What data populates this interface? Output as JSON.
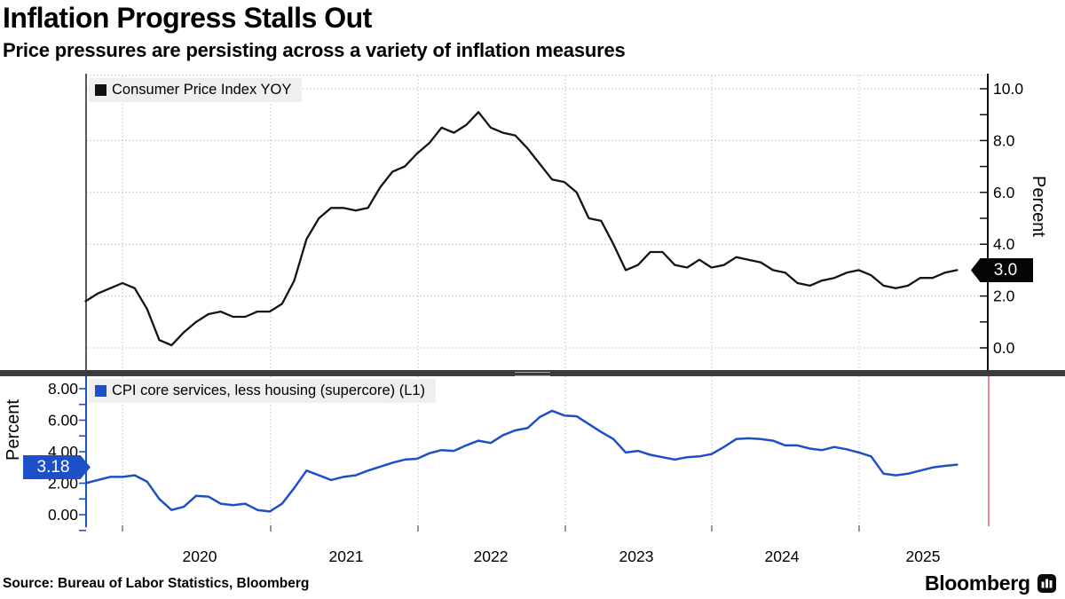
{
  "header": {
    "title": "Inflation Progress Stalls Out",
    "subtitle": "Price pressures are persisting across a variety of inflation measures"
  },
  "footer": {
    "source": "Source: Bureau of Labor Statistics, Bloomberg",
    "brand": "Bloomberg"
  },
  "colors": {
    "cpi_line": "#141414",
    "supercore_line": "#1d50c8",
    "top_badge_bg": "#050505",
    "bottom_badge_bg": "#1d50c8",
    "grid": "#bcbcbc",
    "divider": "#3c3c3c",
    "red_cursor": "#e0636c",
    "legend_bg": "#efefef"
  },
  "x_axis": {
    "years": [
      "2020",
      "2021",
      "2022",
      "2023",
      "2024",
      "2025"
    ]
  },
  "top_chart": {
    "legend": "Consumer Price Index YOY",
    "axis_label": "Percent",
    "tick_labels": [
      "0.0",
      "2.0",
      "4.0",
      "6.0",
      "8.0",
      "10.0"
    ],
    "last_value_label": "3.0"
  },
  "bottom_chart": {
    "legend": "CPI core services, less housing (supercore) (L1)",
    "axis_label": "Percent",
    "tick_labels": [
      "0.00",
      "2.00",
      "4.00",
      "6.00",
      "8.00"
    ],
    "last_value_label": "3.18"
  },
  "chart_data": [
    {
      "type": "line",
      "title": "Consumer Price Index YOY",
      "ylabel": "Percent",
      "frequency": "monthly",
      "start": "2019-10",
      "end": "2025-09",
      "x_tick_labels": [
        "2020",
        "2021",
        "2022",
        "2023",
        "2024",
        "2025"
      ],
      "yticks": [
        0,
        2,
        4,
        6,
        8,
        10
      ],
      "ylim": [
        -0.9,
        10.8
      ],
      "grid": "both-dotted",
      "legend_position": "top-left",
      "axis_side": "right",
      "last_value": 3.0,
      "values": [
        1.8,
        2.1,
        2.3,
        2.5,
        2.3,
        1.5,
        0.3,
        0.1,
        0.6,
        1.0,
        1.3,
        1.4,
        1.2,
        1.2,
        1.4,
        1.4,
        1.7,
        2.6,
        4.2,
        5.0,
        5.4,
        5.4,
        5.3,
        5.4,
        6.2,
        6.8,
        7.0,
        7.5,
        7.9,
        8.5,
        8.3,
        8.6,
        9.1,
        8.5,
        8.3,
        8.2,
        7.7,
        7.1,
        6.5,
        6.4,
        6.0,
        5.0,
        4.9,
        4.0,
        3.0,
        3.2,
        3.7,
        3.7,
        3.2,
        3.1,
        3.4,
        3.1,
        3.2,
        3.5,
        3.4,
        3.3,
        3.0,
        2.9,
        2.5,
        2.4,
        2.6,
        2.7,
        2.9,
        3.0,
        2.8,
        2.4,
        2.3,
        2.4,
        2.7,
        2.7,
        2.9,
        3.0
      ]
    },
    {
      "type": "line",
      "title": "CPI core services, less housing (supercore) (L1)",
      "ylabel": "Percent",
      "frequency": "monthly",
      "start": "2019-10",
      "end": "2025-09",
      "x_tick_labels": [
        "2020",
        "2021",
        "2022",
        "2023",
        "2024",
        "2025"
      ],
      "yticks": [
        0,
        2,
        4,
        6,
        8
      ],
      "ylim": [
        -1.2,
        8.8
      ],
      "grid": "vertical-dotted",
      "legend_position": "top-left",
      "axis_side": "left",
      "last_value": 3.18,
      "values": [
        2.0,
        2.2,
        2.4,
        2.4,
        2.5,
        2.1,
        1.0,
        0.3,
        0.5,
        1.2,
        1.15,
        0.7,
        0.6,
        0.7,
        0.3,
        0.2,
        0.7,
        1.7,
        2.8,
        2.5,
        2.2,
        2.4,
        2.5,
        2.8,
        3.05,
        3.3,
        3.5,
        3.55,
        3.9,
        4.1,
        4.05,
        4.4,
        4.7,
        4.55,
        5.05,
        5.35,
        5.5,
        6.2,
        6.6,
        6.3,
        6.25,
        5.75,
        5.25,
        4.8,
        3.95,
        4.05,
        3.8,
        3.65,
        3.5,
        3.65,
        3.7,
        3.85,
        4.3,
        4.8,
        4.85,
        4.8,
        4.7,
        4.4,
        4.4,
        4.2,
        4.1,
        4.3,
        4.15,
        3.95,
        3.7,
        2.6,
        2.5,
        2.6,
        2.8,
        3.0,
        3.1,
        3.18
      ]
    }
  ]
}
